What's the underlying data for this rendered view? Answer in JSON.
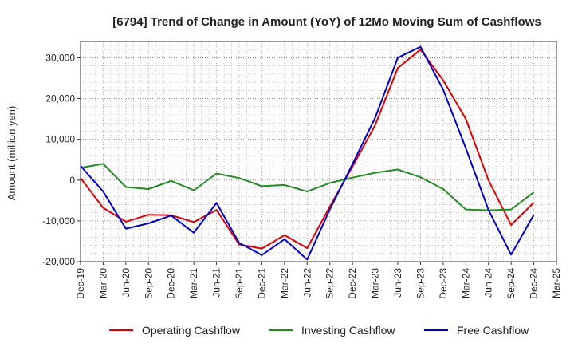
{
  "chart_data": {
    "type": "line",
    "title": "[6794]  Trend of Change in Amount (YoY) of 12Mo Moving Sum of Cashflows",
    "xlabel": "",
    "ylabel": "Amount (million yen)",
    "ylim": [
      -20000,
      34000
    ],
    "yticks": [
      -20000,
      -10000,
      0,
      10000,
      20000,
      30000
    ],
    "ytick_labels": [
      "-20,000",
      "-10,000",
      "0",
      "10,000",
      "20,000",
      "30,000"
    ],
    "grid": true,
    "legend_position": "bottom",
    "categories": [
      "Dec-19",
      "Mar-20",
      "Jun-20",
      "Sep-20",
      "Dec-20",
      "Mar-21",
      "Jun-21",
      "Sep-21",
      "Dec-21",
      "Mar-22",
      "Jun-22",
      "Sep-22",
      "Dec-22",
      "Mar-23",
      "Jun-23",
      "Sep-23",
      "Dec-23",
      "Mar-24",
      "Jun-24",
      "Sep-24",
      "Dec-24",
      "Mar-25"
    ],
    "series": [
      {
        "name": "Operating Cashflow",
        "color": "#dd0000",
        "values": [
          500,
          -6800,
          -10200,
          -8500,
          -8600,
          -10300,
          -7300,
          -15800,
          -16800,
          -13500,
          -16700,
          -6500,
          3300,
          13500,
          27500,
          32000,
          24500,
          15000,
          0,
          -11000,
          -5500,
          null
        ]
      },
      {
        "name": "Investing Cashflow",
        "color": "#228b22",
        "values": [
          3000,
          4000,
          -1700,
          -2200,
          -200,
          -2500,
          1600,
          500,
          -1500,
          -1200,
          -2800,
          -700,
          600,
          1800,
          2600,
          700,
          -2200,
          -7200,
          -7400,
          -7200,
          -3000,
          null
        ]
      },
      {
        "name": "Free Cashflow",
        "color": "#0000cc",
        "values": [
          3500,
          -2800,
          -11900,
          -10600,
          -8700,
          -12900,
          -5600,
          -15400,
          -18400,
          -14500,
          -19500,
          -7200,
          3900,
          15300,
          30000,
          32700,
          22200,
          7800,
          -7300,
          -18300,
          -8500,
          null
        ]
      }
    ]
  }
}
